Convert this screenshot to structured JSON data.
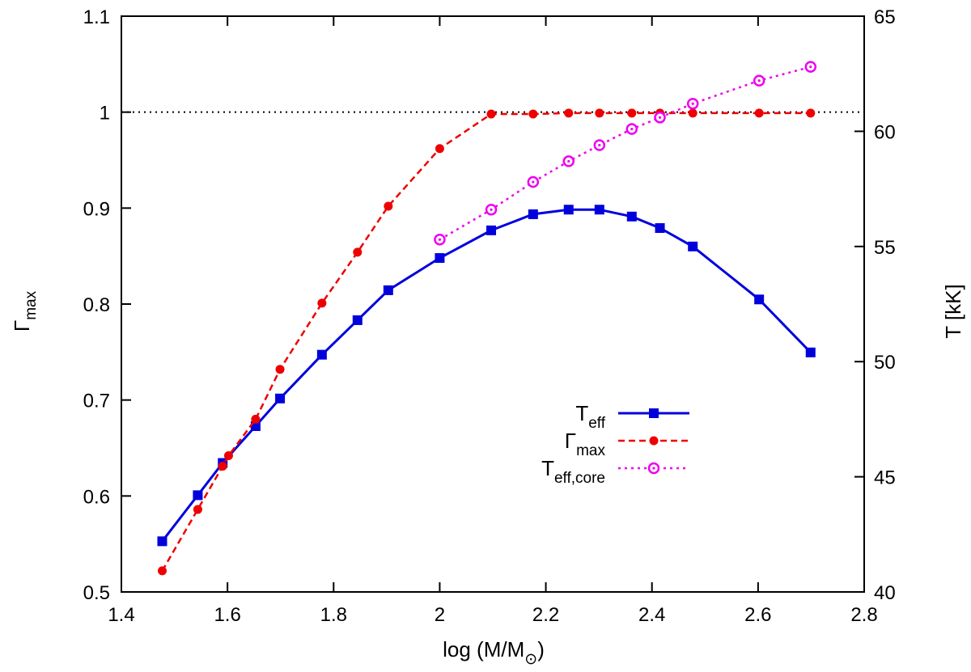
{
  "chart_data": {
    "type": "line",
    "xlabel": {
      "main": "log (M/M",
      "sub": "⊙",
      "close": ")"
    },
    "ylabel_left": {
      "main": "Γ",
      "sub": "max"
    },
    "ylabel_right": "T [kK]",
    "xlim": [
      1.4,
      2.8
    ],
    "ylim_left": [
      0.5,
      1.1
    ],
    "ylim_right": [
      40,
      65
    ],
    "x_ticks": [
      "1.4",
      "1.6",
      "1.8",
      "2",
      "2.2",
      "2.4",
      "2.6",
      "2.8"
    ],
    "y_left_ticks": [
      "0.5",
      "0.6",
      "0.7",
      "0.8",
      "0.9",
      "1",
      "1.1"
    ],
    "y_right_ticks": [
      "40",
      "45",
      "50",
      "55",
      "60",
      "65"
    ],
    "grid": false,
    "legend_position": "center-right",
    "reference_line": {
      "axis": "left",
      "y": 1.0,
      "color": "#000000",
      "style": "dotted"
    },
    "series": [
      {
        "name": "T",
        "name_sub": "eff",
        "axis": "right",
        "color": "#0000dd",
        "dash": "solid",
        "marker": "square",
        "x": [
          1.477,
          1.544,
          1.591,
          1.653,
          1.699,
          1.778,
          1.845,
          1.903,
          2.0,
          2.097,
          2.176,
          2.243,
          2.301,
          2.362,
          2.415,
          2.477,
          2.602,
          2.699
        ],
        "y": [
          42.2,
          44.2,
          45.6,
          47.2,
          48.4,
          50.3,
          51.8,
          53.1,
          54.5,
          55.7,
          56.4,
          56.6,
          56.6,
          56.3,
          55.8,
          55.0,
          52.7,
          50.4
        ]
      },
      {
        "name": "Γ",
        "name_sub": "max",
        "axis": "left",
        "color": "#ee0000",
        "dash": "dashed",
        "marker": "circle",
        "x": [
          1.477,
          1.544,
          1.591,
          1.602,
          1.653,
          1.699,
          1.778,
          1.845,
          1.903,
          2.0,
          2.097,
          2.176,
          2.243,
          2.301,
          2.362,
          2.415,
          2.477,
          2.602,
          2.699
        ],
        "y": [
          0.522,
          0.586,
          0.631,
          0.642,
          0.68,
          0.732,
          0.801,
          0.854,
          0.902,
          0.962,
          0.998,
          0.998,
          0.999,
          0.999,
          0.999,
          0.999,
          0.999,
          0.999,
          0.999
        ]
      },
      {
        "name": "T",
        "name_sub": "eff,core",
        "axis": "right",
        "color": "#ee00ee",
        "dash": "dotted",
        "marker": "open-circle",
        "x": [
          2.0,
          2.097,
          2.176,
          2.243,
          2.301,
          2.362,
          2.415,
          2.477,
          2.602,
          2.699
        ],
        "y": [
          55.3,
          56.6,
          57.8,
          58.7,
          59.4,
          60.1,
          60.6,
          61.2,
          62.2,
          62.8
        ]
      }
    ]
  }
}
